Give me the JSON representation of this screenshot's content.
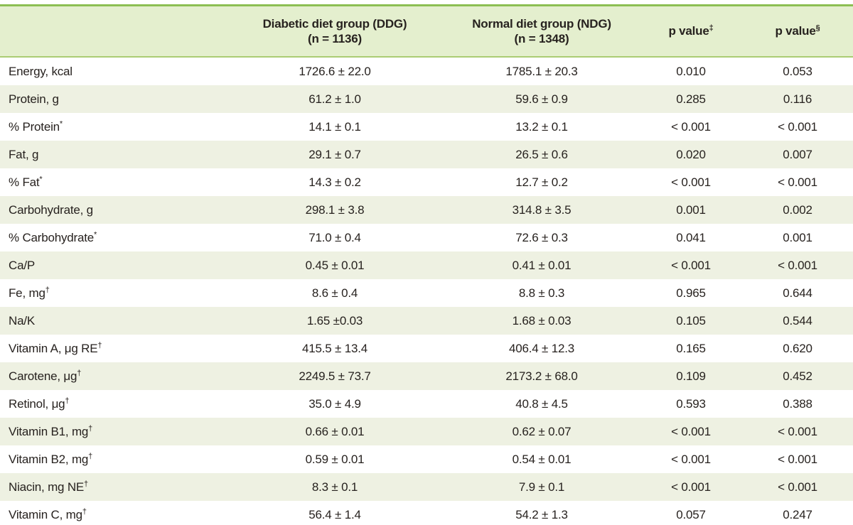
{
  "colors": {
    "outer_border_green": "#8cbf53",
    "header_rule_green": "#abcc74",
    "header_bg": "#e4efce",
    "row_alt_bg": "#eef1e2",
    "text": "#27221f"
  },
  "table": {
    "header": {
      "col_label": "",
      "ddg": {
        "line1": "Diabetic diet group (DDG)",
        "line2": "(n = 1136)"
      },
      "ndg": {
        "line1": "Normal diet group (NDG)",
        "line2": "(n = 1348)"
      },
      "p1": {
        "text": "p value",
        "sup": "‡"
      },
      "p2": {
        "text": "p value",
        "sup": "§"
      }
    },
    "rows": [
      {
        "label": "Energy, kcal",
        "sup": "",
        "ddg": "1726.6 ± 22.0",
        "ndg": "1785.1 ± 20.3",
        "p1": "0.010",
        "p2": "0.053"
      },
      {
        "label": "Protein, g",
        "sup": "",
        "ddg": "61.2 ± 1.0",
        "ndg": "59.6 ± 0.9",
        "p1": "0.285",
        "p2": "0.116"
      },
      {
        "label": "% Protein",
        "sup": "*",
        "ddg": "14.1 ± 0.1",
        "ndg": "13.2 ± 0.1",
        "p1": "< 0.001",
        "p2": "< 0.001"
      },
      {
        "label": "Fat, g",
        "sup": "",
        "ddg": "29.1 ± 0.7",
        "ndg": "26.5 ± 0.6",
        "p1": "0.020",
        "p2": "0.007"
      },
      {
        "label": "% Fat",
        "sup": "*",
        "ddg": "14.3 ± 0.2",
        "ndg": "12.7 ± 0.2",
        "p1": "< 0.001",
        "p2": "< 0.001"
      },
      {
        "label": "Carbohydrate, g",
        "sup": "",
        "ddg": "298.1 ± 3.8",
        "ndg": "314.8 ± 3.5",
        "p1": "0.001",
        "p2": "0.002"
      },
      {
        "label": "% Carbohydrate",
        "sup": "*",
        "ddg": "71.0 ± 0.4",
        "ndg": "72.6 ± 0.3",
        "p1": "0.041",
        "p2": "0.001"
      },
      {
        "label": "Ca/P",
        "sup": "",
        "ddg": "0.45 ± 0.01",
        "ndg": "0.41 ± 0.01",
        "p1": "< 0.001",
        "p2": "< 0.001"
      },
      {
        "label": "Fe, mg",
        "sup": "†",
        "ddg": "8.6 ± 0.4",
        "ndg": "8.8 ± 0.3",
        "p1": "0.965",
        "p2": "0.644"
      },
      {
        "label": "Na/K",
        "sup": "",
        "ddg": "1.65 ±0.03",
        "ndg": "1.68 ± 0.03",
        "p1": "0.105",
        "p2": "0.544"
      },
      {
        "label": "Vitamin A, μg RE",
        "sup": "†",
        "ddg": "415.5 ± 13.4",
        "ndg": "406.4 ± 12.3",
        "p1": "0.165",
        "p2": "0.620"
      },
      {
        "label": "Carotene, μg",
        "sup": "†",
        "ddg": "2249.5 ± 73.7",
        "ndg": "2173.2 ± 68.0",
        "p1": "0.109",
        "p2": "0.452"
      },
      {
        "label": "Retinol, μg",
        "sup": "†",
        "ddg": "35.0 ± 4.9",
        "ndg": "40.8 ± 4.5",
        "p1": "0.593",
        "p2": "0.388"
      },
      {
        "label": "Vitamin B1, mg",
        "sup": "†",
        "ddg": "0.66 ± 0.01",
        "ndg": "0.62 ± 0.07",
        "p1": "< 0.001",
        "p2": "< 0.001"
      },
      {
        "label": "Vitamin B2, mg",
        "sup": "†",
        "ddg": "0.59 ± 0.01",
        "ndg": "0.54 ± 0.01",
        "p1": "< 0.001",
        "p2": "< 0.001"
      },
      {
        "label": "Niacin, mg NE",
        "sup": "†",
        "ddg": "8.3 ± 0.1",
        "ndg": "7.9 ± 0.1",
        "p1": "< 0.001",
        "p2": "< 0.001"
      },
      {
        "label": "Vitamin C, mg",
        "sup": "†",
        "ddg": "56.4 ± 1.4",
        "ndg": "54.2 ± 1.3",
        "p1": "0.057",
        "p2": "0.247"
      }
    ]
  }
}
